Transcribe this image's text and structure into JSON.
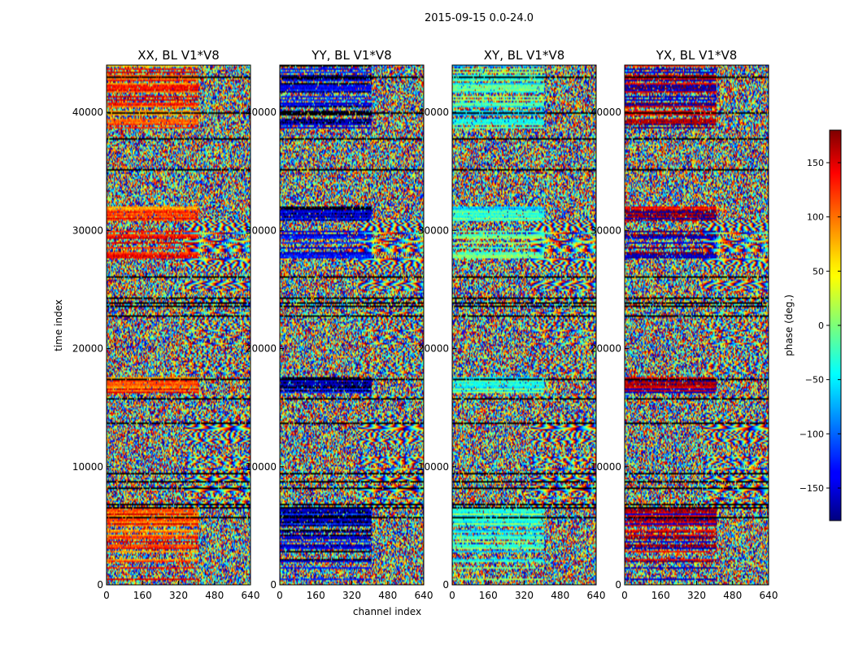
{
  "chart_data": {
    "type": "heatmap",
    "suptitle": "2015-09-15 0.0-24.0",
    "xlabel": "channel index",
    "ylabel": "time index",
    "xlim": [
      0,
      640
    ],
    "ylim": [
      0,
      44000
    ],
    "xticks": [
      "0",
      "160",
      "320",
      "480",
      "640"
    ],
    "yticks": [
      "0",
      "10000",
      "20000",
      "30000",
      "40000"
    ],
    "colorbar": {
      "label": "phase (deg.)",
      "range": [
        -180,
        180
      ],
      "ticks": [
        "150",
        "100",
        "50",
        "0",
        "−50",
        "−100",
        "−150"
      ],
      "tick_values": [
        150,
        100,
        50,
        0,
        -50,
        -100,
        -150
      ],
      "colormap": "jet"
    },
    "panels": [
      {
        "title": "XX, BL V1*V8",
        "dominant_phase": 110
      },
      {
        "title": "YY, BL V1*V8",
        "dominant_phase": -160
      },
      {
        "title": "XY, BL V1*V8",
        "dominant_phase": -30
      },
      {
        "title": "YX, BL V1*V8",
        "dominant_phase": 170
      }
    ],
    "channel_break": 405
  }
}
